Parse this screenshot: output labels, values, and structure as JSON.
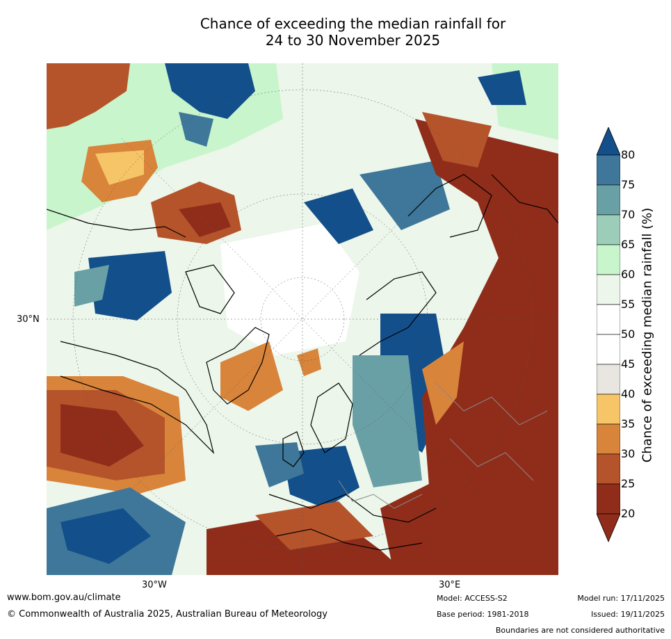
{
  "title": {
    "line1": "Chance of exceeding the median rainfall for",
    "line2": "24 to 30 November 2025"
  },
  "map": {
    "projection": "north polar stereographic",
    "axis_labels": {
      "left": "30°N",
      "bottom_left": "30°W",
      "bottom_right": "30°E"
    },
    "colors": {
      "p20": "#8f2d1a",
      "p25": "#b5542b",
      "p30": "#d9843b",
      "p35": "#f6c567",
      "p40": "#e9e6e1",
      "p45": "#ffffff",
      "p55": "#ecf6ea",
      "p60": "#c9f5cc",
      "p65": "#9ccdb8",
      "p70": "#69a0a6",
      "p75": "#3e7799",
      "p80": "#134f8a",
      "ocean": "#e8f3e6",
      "coast": "#000000",
      "border": "#888888"
    }
  },
  "colorbar": {
    "label": "Chance of exceeding median rainfall (%)",
    "ticks": [
      "80",
      "75",
      "70",
      "65",
      "60",
      "55",
      "50",
      "45",
      "40",
      "35",
      "30",
      "25",
      "20"
    ],
    "colors": [
      "#134f8a",
      "#3e7799",
      "#69a0a6",
      "#9ccdb8",
      "#c9f5cc",
      "#ecf6ea",
      "#ffffff",
      "#ffffff",
      "#e9e6e1",
      "#f6c567",
      "#d9843b",
      "#b5542b",
      "#8f2d1a"
    ]
  },
  "footer": {
    "website": "www.bom.gov.au/climate",
    "copyright": "© Commonwealth of Australia 2025, Australian Bureau of Meteorology",
    "model": "Model: ACCESS-S2",
    "base_period": "Base period: 1981-2018",
    "model_run": "Model run: 17/11/2025",
    "issued": "Issued: 19/11/2025",
    "disclaimer": "Boundaries are not considered authoritative"
  }
}
